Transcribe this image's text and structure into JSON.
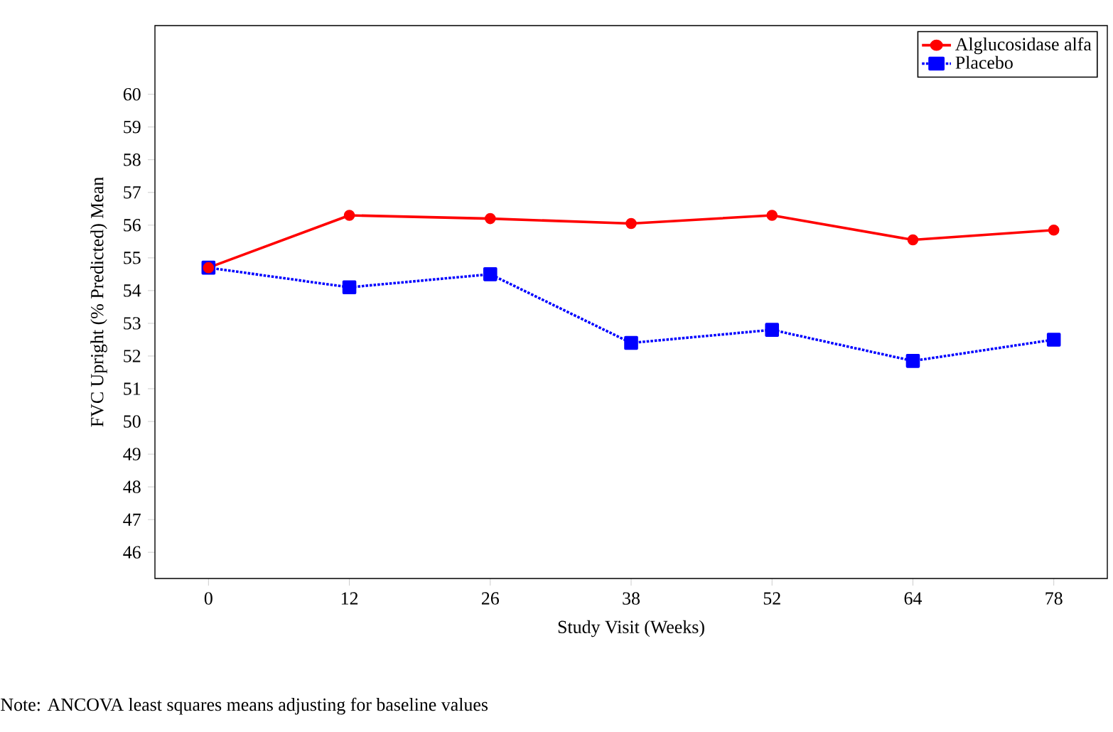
{
  "chart_data": {
    "type": "line",
    "xlabel": "Study Visit (Weeks)",
    "ylabel": "FVC Upright (% Predicted) Mean",
    "categories": [
      "0",
      "12",
      "26",
      "38",
      "52",
      "64",
      "78"
    ],
    "series": [
      {
        "name": "Alglucosidase alfa",
        "color": "#ff0000",
        "marker": "circle",
        "line_style": "solid",
        "values": [
          54.7,
          56.3,
          56.2,
          56.05,
          56.3,
          55.55,
          55.85
        ]
      },
      {
        "name": "Placebo",
        "color": "#0000ff",
        "marker": "square",
        "line_style": "dotted",
        "values": [
          54.7,
          54.1,
          54.5,
          52.4,
          52.8,
          51.85,
          52.5
        ]
      }
    ],
    "ylim": [
      45.2,
      62.1
    ],
    "yticks": [
      46,
      47,
      48,
      49,
      50,
      51,
      52,
      53,
      54,
      55,
      56,
      57,
      58,
      59,
      60
    ],
    "grid": false,
    "legend": "top right",
    "annotations": [
      "Note: ANCOVA least squares means adjusting for baseline values"
    ]
  }
}
